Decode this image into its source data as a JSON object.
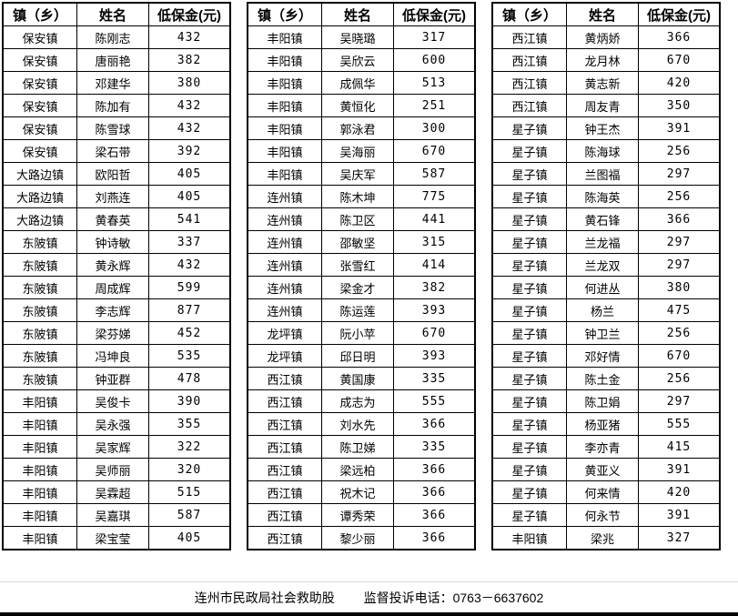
{
  "columns": [
    "镇（乡）",
    "姓名",
    "低保金(元)"
  ],
  "tables": [
    {
      "rows": [
        [
          "保安镇",
          "陈刚志",
          "432"
        ],
        [
          "保安镇",
          "唐丽艳",
          "382"
        ],
        [
          "保安镇",
          "邓建华",
          "380"
        ],
        [
          "保安镇",
          "陈加有",
          "432"
        ],
        [
          "保安镇",
          "陈雪球",
          "432"
        ],
        [
          "保安镇",
          "梁石带",
          "392"
        ],
        [
          "大路边镇",
          "欧阳哲",
          "405"
        ],
        [
          "大路边镇",
          "刘燕连",
          "405"
        ],
        [
          "大路边镇",
          "黄春英",
          "541"
        ],
        [
          "东陂镇",
          "钟诗敏",
          "337"
        ],
        [
          "东陂镇",
          "黄永辉",
          "432"
        ],
        [
          "东陂镇",
          "周成辉",
          "599"
        ],
        [
          "东陂镇",
          "李志辉",
          "877"
        ],
        [
          "东陂镇",
          "梁芬娣",
          "452"
        ],
        [
          "东陂镇",
          "冯坤良",
          "535"
        ],
        [
          "东陂镇",
          "钟亚群",
          "478"
        ],
        [
          "丰阳镇",
          "吴俊卡",
          "390"
        ],
        [
          "丰阳镇",
          "吴永强",
          "355"
        ],
        [
          "丰阳镇",
          "吴家辉",
          "322"
        ],
        [
          "丰阳镇",
          "吴师丽",
          "320"
        ],
        [
          "丰阳镇",
          "吴霖超",
          "515"
        ],
        [
          "丰阳镇",
          "吴嘉琪",
          "587"
        ],
        [
          "丰阳镇",
          "梁宝莹",
          "405"
        ]
      ]
    },
    {
      "rows": [
        [
          "丰阳镇",
          "吴晓璐",
          "317"
        ],
        [
          "丰阳镇",
          "吴欣云",
          "600"
        ],
        [
          "丰阳镇",
          "成佩华",
          "513"
        ],
        [
          "丰阳镇",
          "黄恒化",
          "251"
        ],
        [
          "丰阳镇",
          "郭泳君",
          "300"
        ],
        [
          "丰阳镇",
          "吴海丽",
          "670"
        ],
        [
          "丰阳镇",
          "吴庆军",
          "587"
        ],
        [
          "连州镇",
          "陈木坤",
          "775"
        ],
        [
          "连州镇",
          "陈卫区",
          "441"
        ],
        [
          "连州镇",
          "邵敏坚",
          "315"
        ],
        [
          "连州镇",
          "张雪红",
          "414"
        ],
        [
          "连州镇",
          "梁金才",
          "382"
        ],
        [
          "连州镇",
          "陈运莲",
          "393"
        ],
        [
          "龙坪镇",
          "阮小苹",
          "670"
        ],
        [
          "龙坪镇",
          "邱日明",
          "393"
        ],
        [
          "西江镇",
          "黄国康",
          "335"
        ],
        [
          "西江镇",
          "成志为",
          "555"
        ],
        [
          "西江镇",
          "刘水先",
          "366"
        ],
        [
          "西江镇",
          "陈卫娣",
          "335"
        ],
        [
          "西江镇",
          "梁远柏",
          "366"
        ],
        [
          "西江镇",
          "祝木记",
          "366"
        ],
        [
          "西江镇",
          "谭秀荣",
          "366"
        ],
        [
          "西江镇",
          "黎少丽",
          "366"
        ]
      ]
    },
    {
      "rows": [
        [
          "西江镇",
          "黄炳娇",
          "366"
        ],
        [
          "西江镇",
          "龙月林",
          "670"
        ],
        [
          "西江镇",
          "黄志新",
          "420"
        ],
        [
          "西江镇",
          "周友青",
          "350"
        ],
        [
          "星子镇",
          "钟王杰",
          "391"
        ],
        [
          "星子镇",
          "陈海球",
          "256"
        ],
        [
          "星子镇",
          "兰图福",
          "297"
        ],
        [
          "星子镇",
          "陈海英",
          "256"
        ],
        [
          "星子镇",
          "黄石锋",
          "366"
        ],
        [
          "星子镇",
          "兰龙福",
          "297"
        ],
        [
          "星子镇",
          "兰龙双",
          "297"
        ],
        [
          "星子镇",
          "何进丛",
          "380"
        ],
        [
          "星子镇",
          "杨兰",
          "475"
        ],
        [
          "星子镇",
          "钟卫兰",
          "256"
        ],
        [
          "星子镇",
          "邓好情",
          "670"
        ],
        [
          "星子镇",
          "陈土金",
          "256"
        ],
        [
          "星子镇",
          "陈卫娟",
          "297"
        ],
        [
          "星子镇",
          "杨亚猪",
          "555"
        ],
        [
          "星子镇",
          "李亦青",
          "415"
        ],
        [
          "星子镇",
          "黄亚义",
          "391"
        ],
        [
          "星子镇",
          "何来情",
          "420"
        ],
        [
          "星子镇",
          "何永节",
          "391"
        ],
        [
          "丰阳镇",
          "梁兆",
          "327"
        ]
      ]
    }
  ],
  "footer": {
    "org": "连州市民政局社会救助股",
    "hotline": "监督投诉电话：0763－6637602"
  }
}
